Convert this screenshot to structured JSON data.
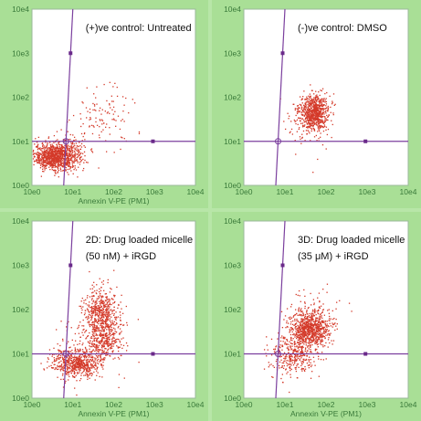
{
  "colors": {
    "background": "#a9df96",
    "plot_area": "#ffffff",
    "gate_line": "#7b3f9e",
    "gate_marker": "#6a2a8a",
    "dots": "#d43a2a",
    "axis_text": "#3a7a3a"
  },
  "chart_data": [
    {
      "type": "scatter",
      "title": "(+)ve control: Untreated",
      "xlabel": "Annexin V-PE (PM1)",
      "ylabel": "",
      "x_scale": "log",
      "y_scale": "log",
      "xlim": [
        1,
        10000
      ],
      "ylim": [
        1,
        10000
      ],
      "x_ticks": [
        "10e0",
        "10e1",
        "10e2",
        "10e3",
        "10e4"
      ],
      "y_ticks": [
        "10e0",
        "10e1",
        "10e2",
        "10e3",
        "10e4"
      ],
      "gate": {
        "x": 10,
        "y": 10
      },
      "clusters": [
        {
          "cx": 3.5,
          "cy": 4.5,
          "sx": 0.24,
          "sy": 0.15,
          "n": 900
        },
        {
          "cx": 9,
          "cy": 5.5,
          "sx": 0.2,
          "sy": 0.2,
          "n": 200
        },
        {
          "cx": 60,
          "cy": 35,
          "sx": 0.4,
          "sy": 0.35,
          "n": 110
        }
      ]
    },
    {
      "type": "scatter",
      "title": "(-)ve control: DMSO",
      "xlabel": "",
      "ylabel": "",
      "x_scale": "log",
      "y_scale": "log",
      "xlim": [
        1,
        10000
      ],
      "ylim": [
        1,
        10000
      ],
      "x_ticks": [
        "10e0",
        "10e1",
        "10e2",
        "10e3",
        "10e4"
      ],
      "y_ticks": [
        "10e0",
        "10e1",
        "10e2",
        "10e3",
        "10e4"
      ],
      "gate": {
        "x": 10,
        "y": 10
      },
      "clusters": [
        {
          "cx": 50,
          "cy": 45,
          "sx": 0.18,
          "sy": 0.2,
          "n": 750
        },
        {
          "cx": 30,
          "cy": 25,
          "sx": 0.3,
          "sy": 0.3,
          "n": 60
        }
      ]
    },
    {
      "type": "scatter",
      "title": "2D: Drug loaded micelle (50 nM) + iRGD",
      "title_lines": [
        "2D: Drug loaded micelle",
        "(50 nM) + iRGD"
      ],
      "xlabel": "Annexin V-PE (PM1)",
      "ylabel": "",
      "x_scale": "log",
      "y_scale": "log",
      "xlim": [
        1,
        10000
      ],
      "ylim": [
        1,
        10000
      ],
      "x_ticks": [
        "10e0",
        "10e1",
        "10e2",
        "10e3",
        "10e4"
      ],
      "y_ticks": [
        "10e0",
        "10e1",
        "10e2",
        "10e3",
        "10e4"
      ],
      "gate": {
        "x": 10,
        "y": 10
      },
      "clusters": [
        {
          "cx": 12,
          "cy": 6,
          "sx": 0.3,
          "sy": 0.16,
          "n": 600
        },
        {
          "cx": 50,
          "cy": 80,
          "sx": 0.22,
          "sy": 0.3,
          "n": 550
        },
        {
          "cx": 60,
          "cy": 18,
          "sx": 0.2,
          "sy": 0.18,
          "n": 250
        },
        {
          "cx": 30,
          "cy": 15,
          "sx": 0.4,
          "sy": 0.4,
          "n": 120
        }
      ]
    },
    {
      "type": "scatter",
      "title": "3D: Drug loaded micelle (35 μM) + iRGD",
      "title_lines": [
        "3D: Drug loaded micelle",
        "(35 μM) + iRGD"
      ],
      "xlabel": "Annexin V-PE (PM1)",
      "ylabel": "",
      "x_scale": "log",
      "y_scale": "log",
      "xlim": [
        1,
        10000
      ],
      "ylim": [
        1,
        10000
      ],
      "x_ticks": [
        "10e0",
        "10e1",
        "10e2",
        "10e3",
        "10e4"
      ],
      "y_ticks": [
        "10e0",
        "10e1",
        "10e2",
        "10e3",
        "10e4"
      ],
      "gate": {
        "x": 10,
        "y": 10
      },
      "clusters": [
        {
          "cx": 40,
          "cy": 35,
          "sx": 0.24,
          "sy": 0.2,
          "n": 800
        },
        {
          "cx": 15,
          "cy": 9,
          "sx": 0.3,
          "sy": 0.22,
          "n": 350
        },
        {
          "cx": 50,
          "cy": 80,
          "sx": 0.35,
          "sy": 0.3,
          "n": 90
        }
      ]
    }
  ]
}
